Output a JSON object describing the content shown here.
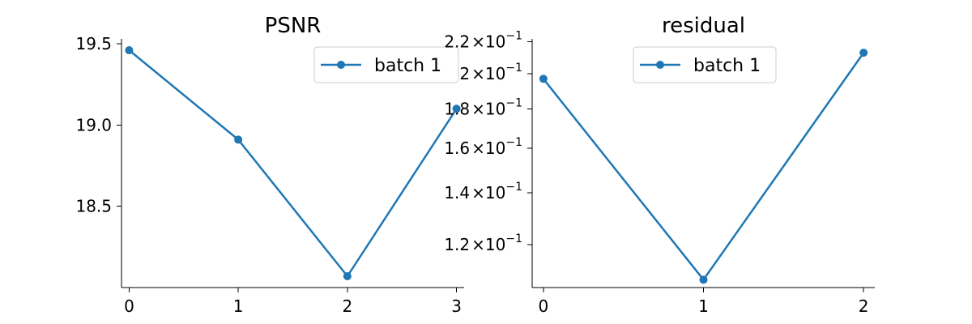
{
  "chart_data": [
    {
      "type": "line",
      "title": "PSNR",
      "xlabel": "",
      "ylabel": "",
      "x_ticks": [
        "0",
        "1",
        "2",
        "3"
      ],
      "y_ticks": [
        "18.5",
        "19.0",
        "19.5"
      ],
      "y_tick_values": [
        18.5,
        19.0,
        19.5
      ],
      "xlim": [
        -0.07,
        3.07
      ],
      "ylim": [
        18.0,
        19.53
      ],
      "y_scale": "linear",
      "grid": false,
      "legend": "upper-right",
      "series": [
        {
          "name": "batch 1",
          "color": "#1f77b4",
          "x": [
            0,
            1,
            2,
            3
          ],
          "y": [
            19.46,
            18.91,
            18.07,
            19.1
          ]
        }
      ]
    },
    {
      "type": "line",
      "title": "residual",
      "xlabel": "",
      "ylabel": "",
      "x_ticks": [
        "0",
        "1",
        "2"
      ],
      "y_ticks": [
        {
          "mantissa": "1.2",
          "exp": "−1",
          "value": 0.12
        },
        {
          "mantissa": "1.4",
          "exp": "−1",
          "value": 0.14
        },
        {
          "mantissa": "1.6",
          "exp": "−1",
          "value": 0.16
        },
        {
          "mantissa": "1.8",
          "exp": "−1",
          "value": 0.18
        },
        {
          "mantissa": "2",
          "exp": "−1",
          "value": 0.2
        },
        {
          "mantissa": "2.2",
          "exp": "−1",
          "value": 0.22
        }
      ],
      "xlim": [
        -0.07,
        2.07
      ],
      "ylim": [
        0.1055,
        0.222
      ],
      "y_scale": "log",
      "grid": false,
      "legend": "upper-center",
      "series": [
        {
          "name": "batch 1",
          "color": "#1f77b4",
          "x": [
            0,
            1,
            2
          ],
          "y": [
            0.197,
            0.108,
            0.213
          ]
        }
      ]
    }
  ]
}
